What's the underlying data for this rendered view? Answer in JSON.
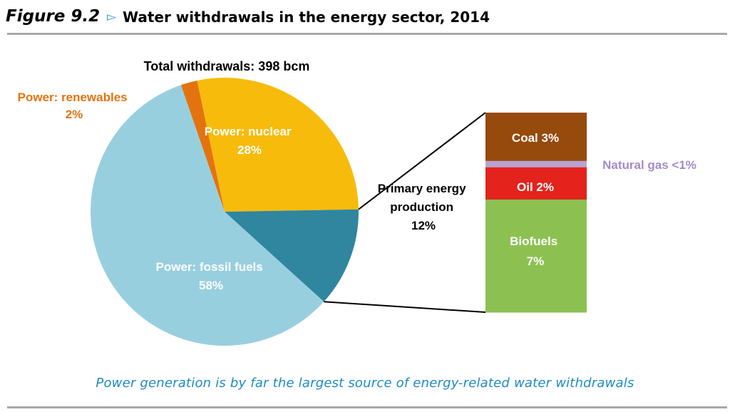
{
  "header": {
    "figure_number": "Figure 9.2",
    "arrow": "▻",
    "title": "Water withdrawals in the energy sector, 2014"
  },
  "caption": "Power generation is by far the largest source of energy-related water withdrawals",
  "colors": {
    "renewables": "#e4730f",
    "nuclear": "#f7bb0b",
    "primary": "#30859f",
    "fossil": "#98cfdf",
    "coal": "#964a0c",
    "natural_gas": "#b9a3cf",
    "oil": "#e3231c",
    "biofuels": "#8cc152",
    "renewables_label": "#e4730f",
    "natural_gas_label": "#a48bc7",
    "connector": "#000000",
    "caption": "#1e8bc3"
  },
  "chart_data": [
    {
      "type": "pie",
      "title": "Total withdrawals: 398 bcm",
      "unit": "%",
      "slices": [
        {
          "key": "renewables",
          "label": "Power: renewables",
          "value_label": "2%",
          "value": 2
        },
        {
          "key": "nuclear",
          "label": "Power: nuclear",
          "value_label": "28%",
          "value": 28
        },
        {
          "key": "primary",
          "label": "Primary energy production",
          "value_label": "12%",
          "value": 12
        },
        {
          "key": "fossil",
          "label": "Power: fossil fuels",
          "value_label": "58%",
          "value": 58
        }
      ]
    },
    {
      "type": "bar",
      "stacked": true,
      "unit": "%",
      "segments": [
        {
          "key": "coal",
          "label": "Coal 3%",
          "value": 3
        },
        {
          "key": "natural_gas",
          "label": "Natural gas <1%",
          "value": 0.4
        },
        {
          "key": "oil",
          "label": "Oil 2%",
          "value": 2
        },
        {
          "key": "biofuels",
          "label": "Biofuels 7%",
          "label_line1": "Biofuels",
          "label_line2": "7%",
          "value": 7
        }
      ]
    }
  ]
}
